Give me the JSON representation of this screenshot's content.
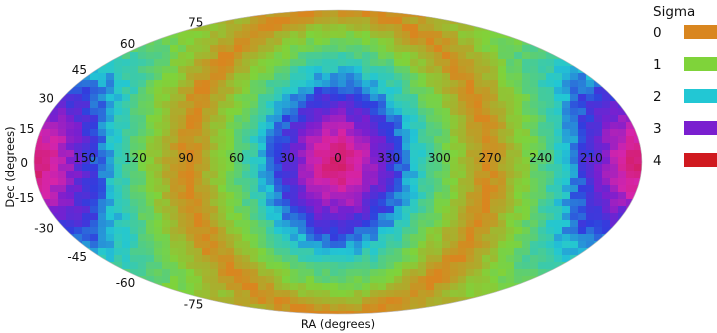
{
  "chart_data": {
    "type": "heatmap",
    "projection": "mollweide",
    "xlabel": "RA (degrees)",
    "ylabel": "Dec (degrees)",
    "ra_ticks": [
      "210",
      "240",
      "270",
      "300",
      "330",
      "0",
      "30",
      "60",
      "90",
      "120",
      "150"
    ],
    "dec_ticks": [
      "75",
      "60",
      "45",
      "30",
      "15",
      "0",
      "-15",
      "-30",
      "-45",
      "-60",
      "-75"
    ],
    "ra_range": [
      -180,
      180
    ],
    "dec_range": [
      -90,
      90
    ],
    "grid": false,
    "colorbar": {
      "title": "Sigma",
      "levels": [
        {
          "label": "0",
          "color": "#d9861f"
        },
        {
          "label": "1",
          "color": "#7fd33a"
        },
        {
          "label": "2",
          "color": "#22c7d4"
        },
        {
          "label": "3",
          "color": "#7a1fcf"
        },
        {
          "label": "4",
          "color": "#d0191f"
        }
      ],
      "placement": "right"
    },
    "pattern": {
      "description_source": "values read from color bands",
      "band_centers_ra": [
        -90,
        90
      ],
      "sigma_at_band_center": 0,
      "sigma_far_from_band": 4
    }
  }
}
